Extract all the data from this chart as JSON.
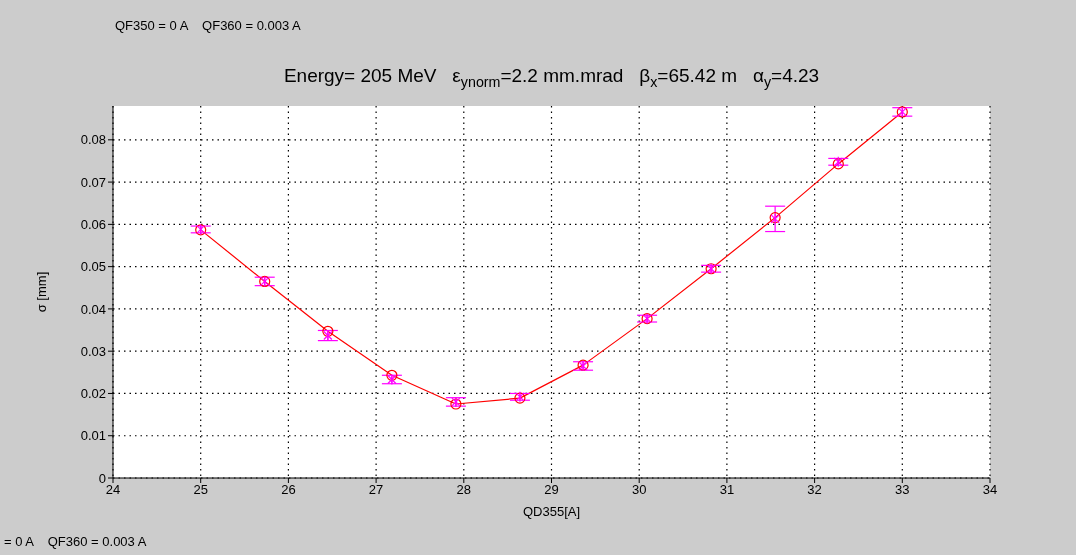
{
  "chart_data": {
    "type": "line",
    "title": "Energy= 205 MeV   ε$_{ynorm}$=2.2 mm.mrad   β$_{x}$=65.42 m   α$_{y}$=4.23",
    "xlabel": "QD355[A]",
    "ylabel": "σ [mm]",
    "annotations": [
      "QF350 = 0 A    QF360 = 0.003 A",
      "= 0 A    QF360 = 0.003 A"
    ],
    "x": [
      25,
      25.73,
      26.45,
      27.18,
      27.91,
      28.64,
      29.36,
      30.09,
      30.82,
      31.55,
      32.27,
      33
    ],
    "series": [
      {
        "color": "#ff0000",
        "marker": "circle",
        "line_style": "solid",
        "values": [
          0.0587,
          0.0465,
          0.0347,
          0.0243,
          0.0175,
          0.0189,
          0.0267,
          0.0377,
          0.0495,
          0.0616,
          0.0743,
          0.0866
        ]
      },
      {
        "type": "scatter",
        "color": "#ff00ff",
        "marker": "cross",
        "values": [
          0.0588,
          0.0465,
          0.0337,
          0.0233,
          0.018,
          0.0192,
          0.0265,
          0.0377,
          0.0495,
          0.0613,
          0.0748,
          0.0866
        ],
        "errors": [
          0.0008,
          0.001,
          0.0012,
          0.001,
          0.001,
          0.0008,
          0.001,
          0.0008,
          0.0008,
          0.003,
          0.0008,
          0.001
        ]
      }
    ],
    "xlim": [
      24,
      34
    ],
    "xticks": [
      24,
      25,
      26,
      27,
      28,
      29,
      30,
      31,
      32,
      33,
      34
    ],
    "ylim": [
      0,
      0.088
    ],
    "yticks": [
      0,
      0.01,
      0.02,
      0.03,
      0.04,
      0.05,
      0.06,
      0.07,
      0.08
    ],
    "grid": true
  }
}
